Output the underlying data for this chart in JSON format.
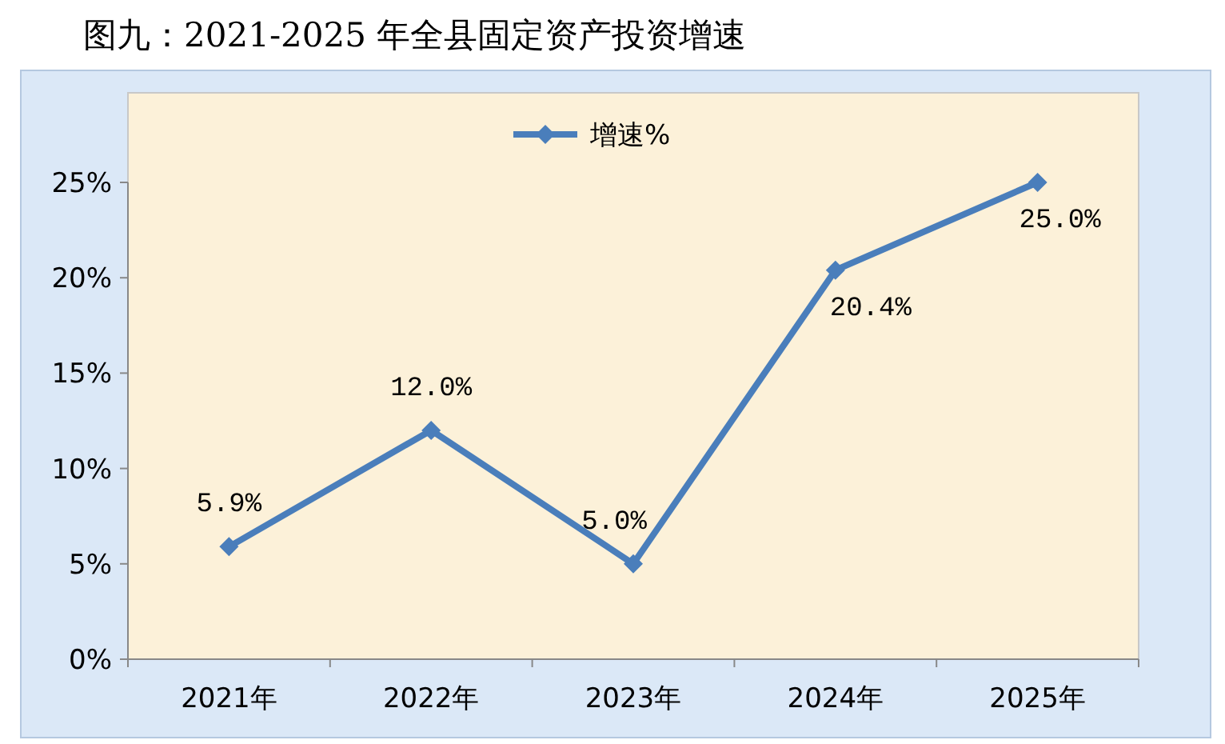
{
  "chart_data": {
    "type": "line",
    "title": "图九：2021-2025 年全县固定资产投资增速",
    "categories": [
      "2021年",
      "2022年",
      "2023年",
      "2024年",
      "2025年"
    ],
    "series": [
      {
        "name": "增速%",
        "color": "#4a7ebb",
        "values": [
          5.9,
          12.0,
          5.0,
          20.4,
          25.0
        ],
        "value_labels": [
          "5.9%",
          "12.0%",
          "5.0%",
          "20.4%",
          "25.0%"
        ]
      }
    ],
    "ylim": [
      0,
      25
    ],
    "yticks": [
      {
        "value": 0,
        "label": "0%"
      },
      {
        "value": 5,
        "label": "5%"
      },
      {
        "value": 10,
        "label": "10%"
      },
      {
        "value": 15,
        "label": "15%"
      },
      {
        "value": 20,
        "label": "20%"
      },
      {
        "value": 25,
        "label": "25%"
      }
    ],
    "grid": false,
    "legend": "top",
    "marker": "diamond",
    "line_style": "solid"
  }
}
